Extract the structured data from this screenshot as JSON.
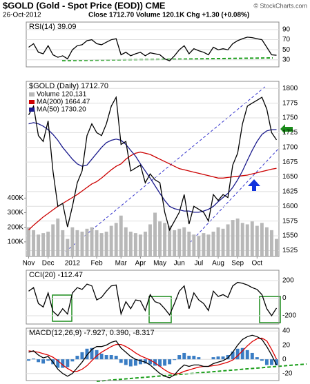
{
  "header": {
    "title": "$GOLD (Gold - Spot Price (EOD)) CME",
    "date": "26-Oct-2012",
    "quote": "Close 1712.70  Volume 120.1K  Chg +1.30 (+0.08%)",
    "credit": "© StockCharts.com"
  },
  "chart_data": [
    {
      "type": "line",
      "title": "RSI(14) 39.09",
      "ylim": [
        16,
        105
      ],
      "yticks": [
        30,
        50,
        70,
        90
      ],
      "grid": true,
      "series": [
        {
          "color": "#000000",
          "type": "line",
          "values": [
            55,
            62,
            45,
            42,
            58,
            40,
            35,
            38,
            32,
            50,
            58,
            60,
            68,
            70,
            62,
            60,
            65,
            70,
            72,
            40,
            45,
            38,
            42,
            45,
            38,
            44,
            42,
            40,
            32,
            28,
            38,
            50,
            58,
            42,
            52,
            48,
            45,
            40,
            55,
            50,
            52,
            50,
            62,
            68,
            72,
            75,
            74,
            72,
            70,
            55,
            40,
            39.09
          ]
        }
      ]
    },
    {
      "type": "line",
      "title": "$GOLD (Daily) 1712.70",
      "ylim": [
        1515,
        1812
      ],
      "yticks": [
        1525,
        1550,
        1575,
        1600,
        1625,
        1650,
        1675,
        1700,
        1725,
        1750,
        1775,
        1800
      ],
      "y2lim": [
        0,
        1200000
      ],
      "y2ticks": [
        {
          "value": 100000,
          "label": "100K"
        },
        {
          "value": 200000,
          "label": "200K"
        },
        {
          "value": 300000,
          "label": "300K"
        },
        {
          "value": 400000,
          "label": "400K"
        }
      ],
      "grid": true,
      "categories": [
        "Nov",
        null,
        null,
        null,
        "Dec",
        null,
        null,
        null,
        null,
        "2012",
        null,
        null,
        null,
        null,
        "Feb",
        null,
        null,
        null,
        null,
        "Mar",
        null,
        null,
        null,
        "Apr",
        null,
        null,
        null,
        "May",
        null,
        null,
        null,
        "Jun",
        null,
        null,
        null,
        "Jul",
        null,
        null,
        null,
        "Aug",
        null,
        null,
        null,
        "Sep",
        null,
        null,
        null,
        "Oct",
        null,
        null,
        null,
        null
      ],
      "series": [
        {
          "name": "Volume 120,131",
          "color": "#b8b8b8",
          "type": "bar",
          "axis": "y2",
          "values": [
            200000,
            180000,
            150000,
            160000,
            170000,
            220000,
            260000,
            180000,
            120000,
            200000,
            180000,
            170000,
            190000,
            200000,
            180000,
            160000,
            170000,
            210000,
            230000,
            280000,
            200000,
            170000,
            160000,
            150000,
            170000,
            220000,
            300000,
            240000,
            230000,
            210000,
            180000,
            190000,
            200000,
            170000,
            150000,
            140000,
            160000,
            150000,
            170000,
            200000,
            190000,
            220000,
            250000,
            260000,
            230000,
            220000,
            240000,
            210000,
            230000,
            200000,
            180000,
            120131
          ]
        },
        {
          "name": "MA(200) 1664.47",
          "color": "#cc0000",
          "type": "line",
          "values": [
            1560,
            1568,
            1575,
            1582,
            1588,
            1594,
            1600,
            1605,
            1610,
            1615,
            1620,
            1626,
            1632,
            1638,
            1642,
            1648,
            1655,
            1662,
            1668,
            1672,
            1680,
            1686,
            1690,
            1692,
            1690,
            1688,
            1684,
            1680,
            1676,
            1672,
            1668,
            1664,
            1662,
            1660,
            1658,
            1656,
            1654,
            1652,
            1650,
            1648,
            1648,
            1649,
            1650,
            1651,
            1652,
            1653,
            1655,
            1657,
            1659,
            1661,
            1663,
            1664.47
          ]
        },
        {
          "name": "MA(50) 1730.20",
          "color": "#1a1a8c",
          "type": "line",
          "values": [
            1740,
            1742,
            1740,
            1736,
            1730,
            1722,
            1712,
            1700,
            1690,
            1680,
            1672,
            1668,
            1670,
            1680,
            1690,
            1700,
            1708,
            1712,
            1714,
            1712,
            1705,
            1695,
            1685,
            1672,
            1660,
            1648,
            1635,
            1622,
            1610,
            1600,
            1596,
            1594,
            1592,
            1592,
            1590,
            1590,
            1592,
            1595,
            1600,
            1608,
            1615,
            1622,
            1632,
            1645,
            1660,
            1678,
            1695,
            1710,
            1722,
            1728,
            1730,
            1730.2
          ]
        },
        {
          "color": "#000000",
          "type": "line",
          "values": [
            1755,
            1770,
            1720,
            1710,
            1745,
            1660,
            1600,
            1605,
            1565,
            1600,
            1640,
            1660,
            1720,
            1740,
            1725,
            1720,
            1740,
            1770,
            1785,
            1705,
            1710,
            1660,
            1665,
            1670,
            1640,
            1655,
            1645,
            1640,
            1590,
            1560,
            1575,
            1590,
            1620,
            1570,
            1600,
            1595,
            1590,
            1575,
            1620,
            1610,
            1620,
            1615,
            1670,
            1690,
            1740,
            1770,
            1775,
            1780,
            1785,
            1765,
            1725,
            1712.7
          ]
        }
      ]
    },
    {
      "type": "line",
      "title": "CCI(20) -112.47",
      "ylim": [
        -294,
        318
      ],
      "yticks": [
        -200,
        0,
        200
      ],
      "grid": true,
      "series": [
        {
          "color": "#000000",
          "type": "line",
          "values": [
            80,
            120,
            -60,
            -100,
            60,
            -150,
            -200,
            -120,
            -180,
            60,
            120,
            100,
            160,
            140,
            -20,
            10,
            80,
            140,
            150,
            -180,
            -40,
            -120,
            -20,
            -30,
            -140,
            40,
            -40,
            -60,
            -120,
            -190,
            -60,
            80,
            140,
            -120,
            60,
            -20,
            -60,
            -140,
            80,
            20,
            40,
            10,
            140,
            180,
            170,
            150,
            120,
            100,
            40,
            -120,
            -200,
            -112.47
          ]
        }
      ]
    },
    {
      "type": "line",
      "title": "MACD(12,26,9) -7.927, 0.390, -8.317",
      "ylim": [
        -30,
        44
      ],
      "yticks": [
        -20,
        0,
        20,
        40
      ],
      "grid": true,
      "series": [
        {
          "color": "#3a7dc4",
          "type": "bar",
          "values": [
            -2,
            1,
            -4,
            -6,
            -2,
            -7,
            -12,
            -12,
            -11,
            -3,
            5,
            10,
            15,
            16,
            13,
            8,
            6,
            6,
            5,
            -5,
            -8,
            -10,
            -9,
            -7,
            -6,
            -7,
            -9,
            -10,
            -9,
            -7,
            -1,
            6,
            9,
            5,
            5,
            3,
            0,
            0,
            3,
            4,
            4,
            6,
            11,
            15,
            16,
            13,
            9,
            3,
            -2,
            -8,
            -8,
            -8.317
          ]
        },
        {
          "color": "#dd0000",
          "type": "line",
          "values": [
            12,
            11,
            10,
            8,
            6,
            3,
            -2,
            -8,
            -13,
            -17,
            -17,
            -14,
            -9,
            -2,
            5,
            10,
            14,
            18,
            21,
            21,
            18,
            14,
            9,
            5,
            2,
            -1,
            -5,
            -10,
            -15,
            -19,
            -21,
            -20,
            -17,
            -15,
            -13,
            -11,
            -10,
            -10,
            -9,
            -8,
            -6,
            -4,
            -1,
            5,
            12,
            19,
            25,
            29,
            30,
            26,
            14,
            0.39
          ]
        },
        {
          "color": "#000000",
          "type": "line",
          "values": [
            10,
            12,
            6,
            2,
            4,
            -4,
            -14,
            -20,
            -24,
            -20,
            -12,
            -4,
            6,
            14,
            18,
            18,
            20,
            24,
            26,
            16,
            10,
            4,
            0,
            -2,
            -4,
            -8,
            -14,
            -20,
            -24,
            -26,
            -22,
            -14,
            -8,
            -10,
            -8,
            -8,
            -10,
            -10,
            -6,
            -4,
            -2,
            2,
            10,
            20,
            28,
            32,
            34,
            32,
            28,
            18,
            6,
            -7.927
          ]
        }
      ]
    }
  ]
}
